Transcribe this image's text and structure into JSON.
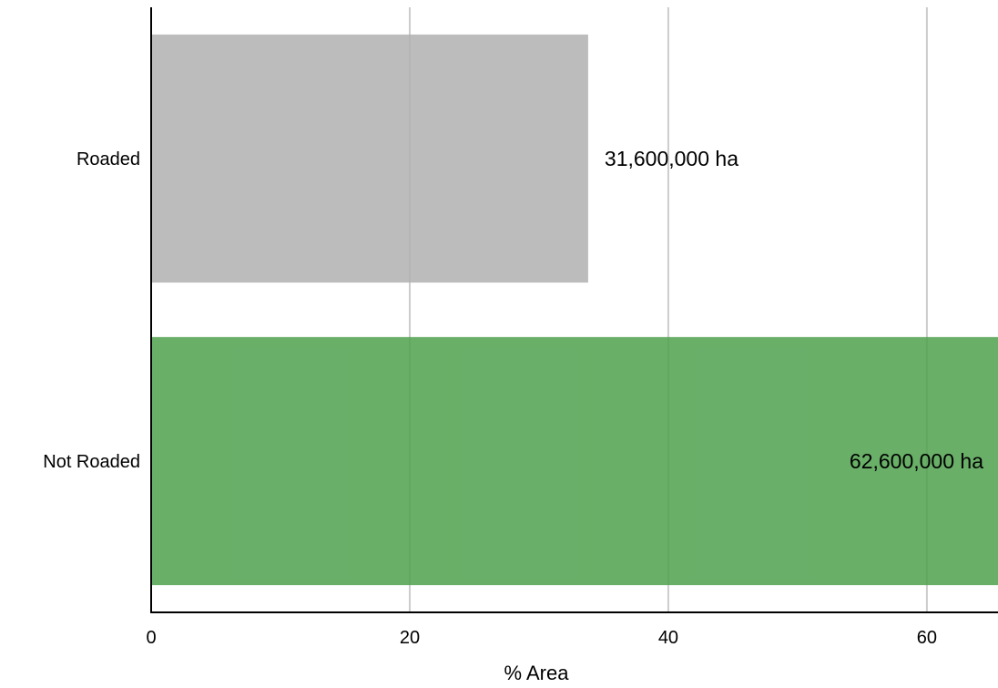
{
  "chart_data": {
    "type": "bar",
    "orientation": "horizontal",
    "categories": [
      "Roaded",
      "Not Roaded"
    ],
    "values": [
      33.8,
      65.5
    ],
    "data_labels": [
      "31,600,000 ha",
      "62,600,000 ha"
    ],
    "colors": [
      "#b0b0b0",
      "#4fa14e"
    ],
    "xlabel": "% Area",
    "ylabel": "",
    "xlim": [
      0,
      65.5
    ],
    "xticks": [
      0,
      20,
      40,
      60
    ],
    "xtick_labels": [
      "0",
      "20",
      "40",
      "60"
    ],
    "grid": "vertical",
    "grid_color": "#cccccc",
    "legend": "none"
  }
}
